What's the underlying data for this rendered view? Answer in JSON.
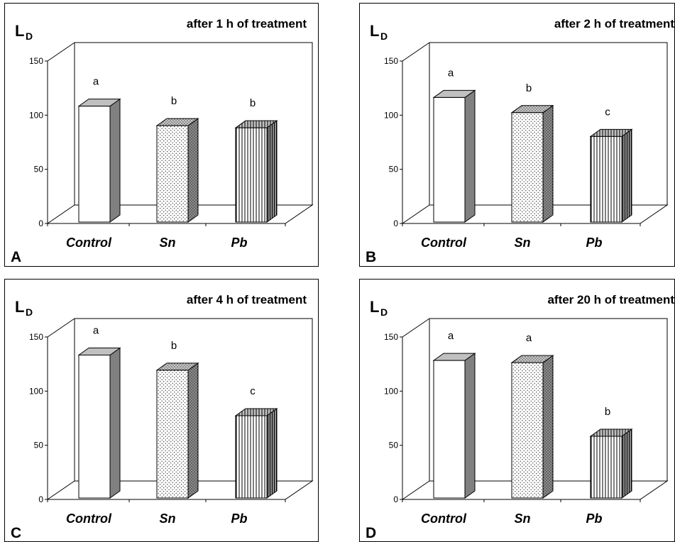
{
  "y_axis_label": "L",
  "y_axis_label_sub": "D",
  "chart_data": [
    {
      "type": "bar",
      "panel_letter": "A",
      "title": "after 1 h of treatment",
      "categories": [
        "Control",
        "Sn",
        "Pb"
      ],
      "values": [
        107,
        89,
        87
      ],
      "significance_labels": [
        "a",
        "b",
        "b"
      ],
      "ylim": [
        0,
        150
      ],
      "yticks": [
        0,
        50,
        100,
        150
      ]
    },
    {
      "type": "bar",
      "panel_letter": "B",
      "title": "after 2 h of treatment",
      "categories": [
        "Control",
        "Sn",
        "Pb"
      ],
      "values": [
        115,
        101,
        79
      ],
      "significance_labels": [
        "a",
        "b",
        "c"
      ],
      "ylim": [
        0,
        150
      ],
      "yticks": [
        0,
        50,
        100,
        150
      ]
    },
    {
      "type": "bar",
      "panel_letter": "C",
      "title": "after 4 h of treatment",
      "categories": [
        "Control",
        "Sn",
        "Pb"
      ],
      "values": [
        132,
        118,
        76
      ],
      "significance_labels": [
        "a",
        "b",
        "c"
      ],
      "ylim": [
        0,
        150
      ],
      "yticks": [
        0,
        50,
        100,
        150
      ]
    },
    {
      "type": "bar",
      "panel_letter": "D",
      "title": "after 20 h of treatment",
      "categories": [
        "Control",
        "Sn",
        "Pb"
      ],
      "values": [
        127,
        125,
        57
      ],
      "significance_labels": [
        "a",
        "a",
        "b"
      ],
      "ylim": [
        0,
        150
      ],
      "yticks": [
        0,
        50,
        100,
        150
      ]
    }
  ],
  "colors": {
    "bar_front": "#ffffff",
    "bar_side": "#808080",
    "bar_top": "#c0c0c0",
    "outline": "#000000"
  },
  "bar_patterns": [
    "solid",
    "dots",
    "vertical-stripes"
  ]
}
